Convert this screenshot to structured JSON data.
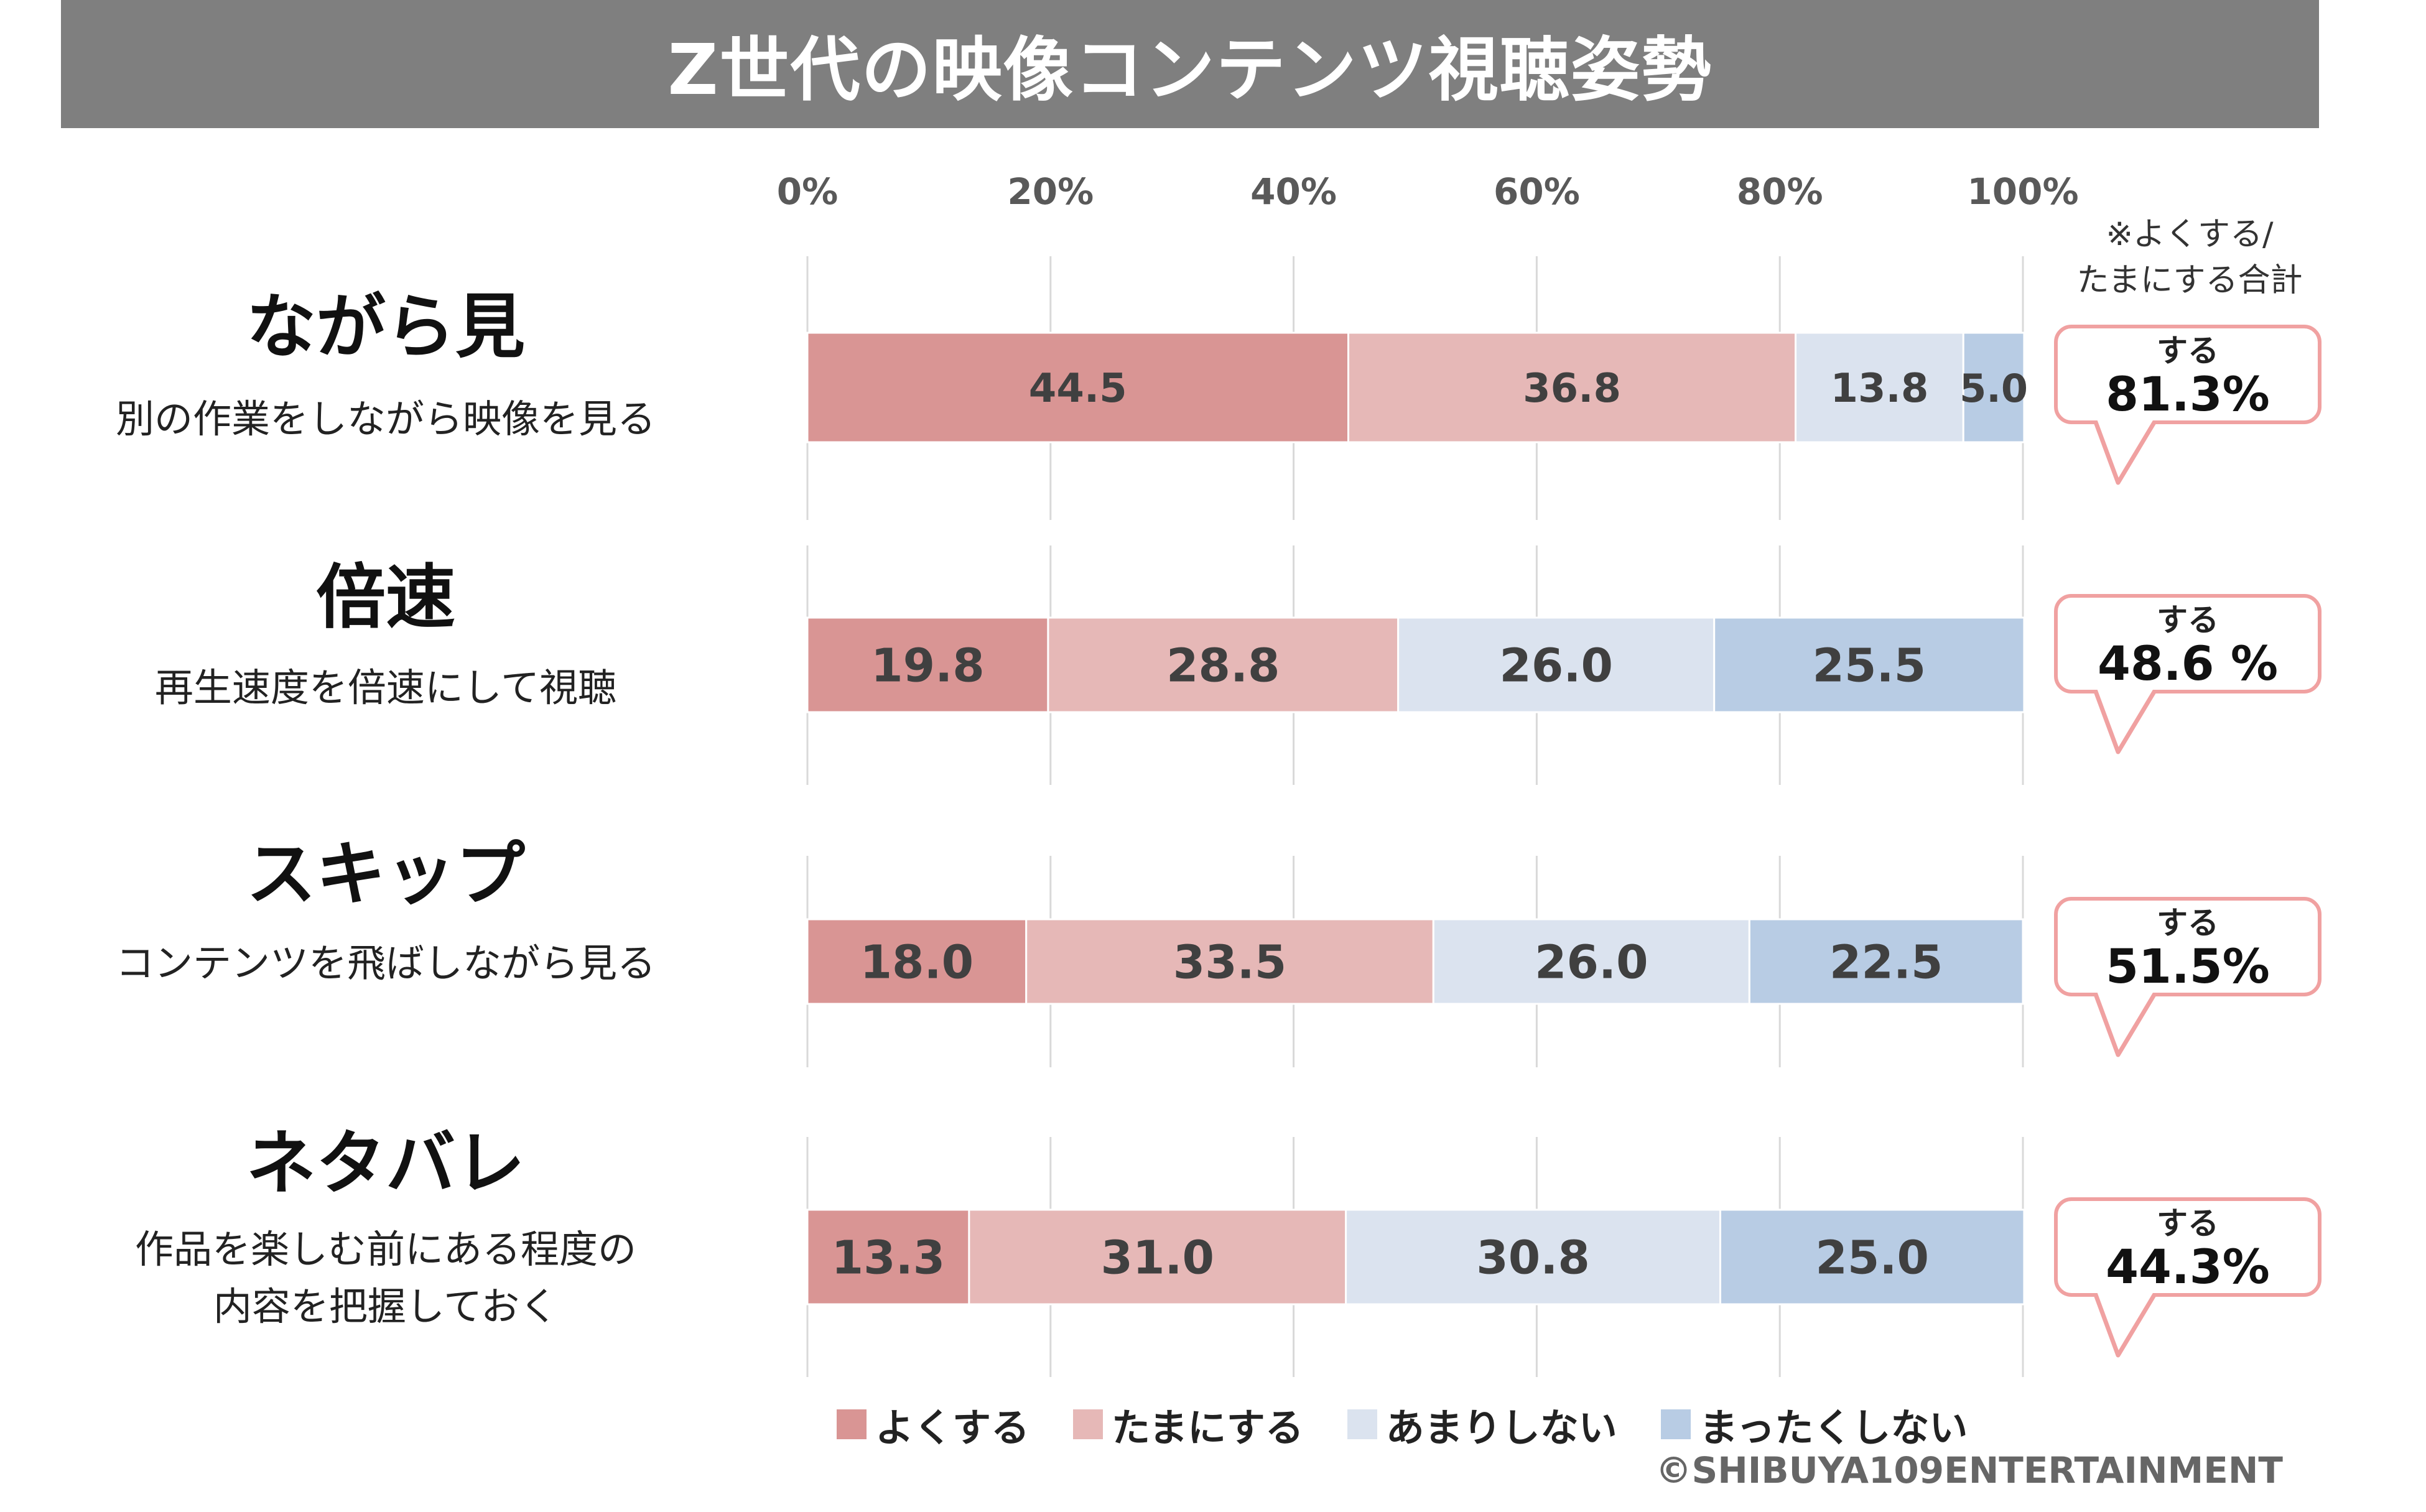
{
  "chart_data": {
    "type": "bar",
    "orientation": "horizontal",
    "stacked": true,
    "title": "Z世代の映像コンテンツ視聴姿勢",
    "x_axis": {
      "ticks": [
        "0%",
        "20%",
        "40%",
        "60%",
        "80%",
        "100%"
      ],
      "range": [
        0,
        100
      ]
    },
    "categories": [
      {
        "title": "ながら見",
        "subtitle": [
          "別の作業をしながら映像を見る"
        ]
      },
      {
        "title": "倍速",
        "subtitle": [
          "再生速度を倍速にして視聴"
        ]
      },
      {
        "title": "スキップ",
        "subtitle": [
          "コンテンツを飛ばしながら見る"
        ]
      },
      {
        "title": "ネタバレ",
        "subtitle": [
          "作品を楽しむ前にある程度の",
          "内容を把握しておく"
        ]
      }
    ],
    "series": [
      {
        "name": "よくする",
        "color": "#d99594",
        "values": [
          44.5,
          19.8,
          18.0,
          13.3
        ],
        "labels": [
          "44.5",
          "19.8",
          "18.0",
          "13.3"
        ]
      },
      {
        "name": "たまにする",
        "color": "#e6b8b7",
        "values": [
          36.8,
          28.8,
          33.5,
          31.0
        ],
        "labels": [
          "36.8",
          "28.8",
          "33.5",
          "31.0"
        ]
      },
      {
        "name": "あまりしない",
        "color": "#dbe3ef",
        "values": [
          13.8,
          26.0,
          26.0,
          30.8
        ],
        "labels": [
          "13.8",
          "26.0",
          "26.0",
          "30.8"
        ]
      },
      {
        "name": "まったくしない",
        "color": "#b8cce4",
        "values": [
          5.0,
          25.5,
          22.5,
          25.0
        ],
        "labels": [
          "5.0",
          "25.5",
          "22.5",
          "25.0"
        ]
      }
    ],
    "callout_note": [
      "※よくする/",
      "たまにする合計"
    ],
    "callouts": [
      {
        "top": "する",
        "value": "81.3%"
      },
      {
        "top": "する",
        "value": "48.6 %"
      },
      {
        "top": "する",
        "value": "51.5%"
      },
      {
        "top": "する",
        "value": "44.3%"
      }
    ],
    "callout_color": "#f0a1a1",
    "copyright": "©SHIBUYA109ENTERTAINMENT"
  }
}
